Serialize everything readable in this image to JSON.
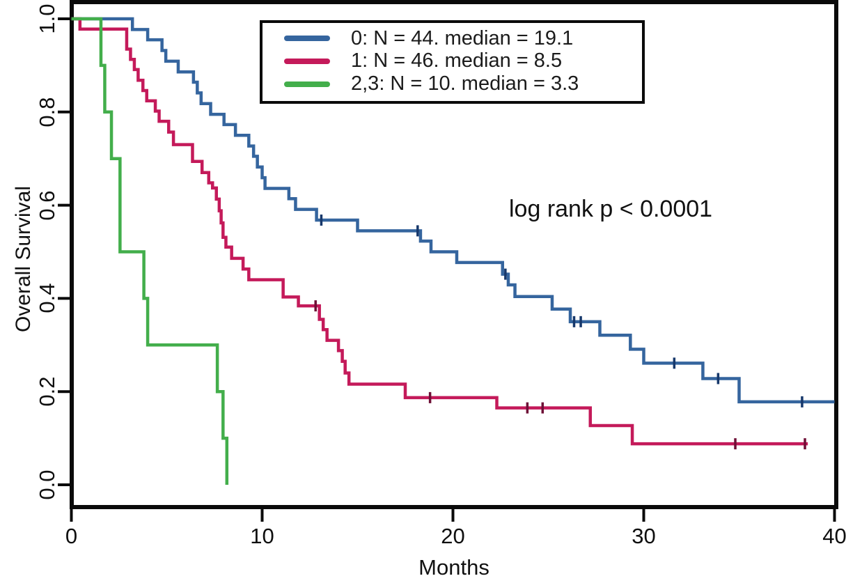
{
  "chart_data": {
    "type": "line",
    "subtype": "kaplan-meier-step",
    "title": "",
    "xlabel": "Months",
    "ylabel": "Overall Survival",
    "xlim": [
      0,
      40
    ],
    "ylim": [
      0.0,
      1.0
    ],
    "x_ticks": [
      0,
      10,
      20,
      30,
      40
    ],
    "x_tick_labels": [
      "0",
      "10",
      "20",
      "30",
      "40"
    ],
    "y_ticks": [
      0.0,
      0.2,
      0.4,
      0.6,
      0.8,
      1.0
    ],
    "y_tick_labels": [
      "0.0",
      "0.2",
      "0.4",
      "0.6",
      "0.8",
      "1.0"
    ],
    "grid": false,
    "frame": true,
    "legend_position": "top-center",
    "annotation": {
      "text": "log rank p < 0.0001",
      "x_months": 23,
      "y_survival": 0.6
    },
    "axis_color": "#0a0a0a",
    "series": [
      {
        "name": "0",
        "label": "0: N = 44. median = 19.1",
        "n": 44,
        "median": 19.1,
        "color": "#35659e",
        "censor_color": "#17386b",
        "end_t": 40,
        "steps": [
          [
            0,
            1.0
          ],
          [
            3.2,
            0.977
          ],
          [
            4.0,
            0.955
          ],
          [
            4.75,
            0.932
          ],
          [
            4.95,
            0.909
          ],
          [
            5.6,
            0.886
          ],
          [
            6.4,
            0.864
          ],
          [
            6.6,
            0.841
          ],
          [
            6.8,
            0.818
          ],
          [
            7.3,
            0.795
          ],
          [
            8.0,
            0.773
          ],
          [
            8.6,
            0.75
          ],
          [
            9.3,
            0.727
          ],
          [
            9.55,
            0.705
          ],
          [
            9.75,
            0.682
          ],
          [
            10.0,
            0.659
          ],
          [
            10.15,
            0.636
          ],
          [
            11.4,
            0.614
          ],
          [
            11.75,
            0.591
          ],
          [
            12.85,
            0.568
          ],
          [
            15.0,
            0.545
          ],
          [
            18.3,
            0.523
          ],
          [
            18.85,
            0.5
          ],
          [
            20.2,
            0.477
          ],
          [
            22.6,
            0.452
          ],
          [
            22.9,
            0.429
          ],
          [
            23.25,
            0.404
          ],
          [
            25.2,
            0.377
          ],
          [
            26.15,
            0.35
          ],
          [
            27.7,
            0.321
          ],
          [
            29.3,
            0.291
          ],
          [
            30.0,
            0.261
          ],
          [
            33.1,
            0.228
          ],
          [
            35.0,
            0.178
          ]
        ],
        "censors": [
          [
            13.1,
            0.568
          ],
          [
            18.15,
            0.545
          ],
          [
            22.75,
            0.452
          ],
          [
            26.35,
            0.35
          ],
          [
            26.7,
            0.35
          ],
          [
            31.6,
            0.261
          ],
          [
            33.9,
            0.228
          ],
          [
            38.3,
            0.178
          ]
        ]
      },
      {
        "name": "1",
        "label": "1: N = 46. median = 8.5",
        "n": 46,
        "median": 8.5,
        "color": "#c41a5a",
        "censor_color": "#6e0f36",
        "end_t": 38.6,
        "steps": [
          [
            0,
            1.0
          ],
          [
            0.45,
            0.978
          ],
          [
            2.9,
            0.935
          ],
          [
            3.1,
            0.913
          ],
          [
            3.3,
            0.891
          ],
          [
            3.5,
            0.868
          ],
          [
            3.75,
            0.846
          ],
          [
            3.95,
            0.824
          ],
          [
            4.4,
            0.802
          ],
          [
            4.6,
            0.78
          ],
          [
            5.1,
            0.757
          ],
          [
            5.35,
            0.73
          ],
          [
            6.35,
            0.694
          ],
          [
            6.85,
            0.67
          ],
          [
            7.2,
            0.648
          ],
          [
            7.4,
            0.637
          ],
          [
            7.6,
            0.613
          ],
          [
            7.75,
            0.588
          ],
          [
            7.85,
            0.562
          ],
          [
            7.95,
            0.531
          ],
          [
            8.1,
            0.51
          ],
          [
            8.4,
            0.486
          ],
          [
            9.0,
            0.463
          ],
          [
            9.3,
            0.44
          ],
          [
            11.1,
            0.403
          ],
          [
            11.9,
            0.384
          ],
          [
            13.0,
            0.355
          ],
          [
            13.2,
            0.333
          ],
          [
            13.4,
            0.31
          ],
          [
            14.0,
            0.288
          ],
          [
            14.2,
            0.265
          ],
          [
            14.35,
            0.24
          ],
          [
            14.55,
            0.216
          ],
          [
            17.5,
            0.187
          ],
          [
            22.3,
            0.165
          ],
          [
            27.2,
            0.127
          ],
          [
            29.4,
            0.088
          ]
        ],
        "censors": [
          [
            12.8,
            0.384
          ],
          [
            18.8,
            0.187
          ],
          [
            23.9,
            0.165
          ],
          [
            24.7,
            0.165
          ],
          [
            34.8,
            0.088
          ],
          [
            38.45,
            0.088
          ]
        ]
      },
      {
        "name": "2,3",
        "label": "2,3: N = 10. median = 3.3",
        "n": 10,
        "median": 3.3,
        "color": "#43ae4b",
        "censor_color": "#2b7d31",
        "end_t": 8.15,
        "steps": [
          [
            0,
            1.0
          ],
          [
            1.55,
            0.9
          ],
          [
            1.75,
            0.8
          ],
          [
            2.1,
            0.7
          ],
          [
            2.55,
            0.5
          ],
          [
            3.8,
            0.4
          ],
          [
            4.0,
            0.3
          ],
          [
            7.65,
            0.2
          ],
          [
            7.95,
            0.1
          ],
          [
            8.15,
            0.0
          ]
        ],
        "censors": []
      }
    ]
  }
}
